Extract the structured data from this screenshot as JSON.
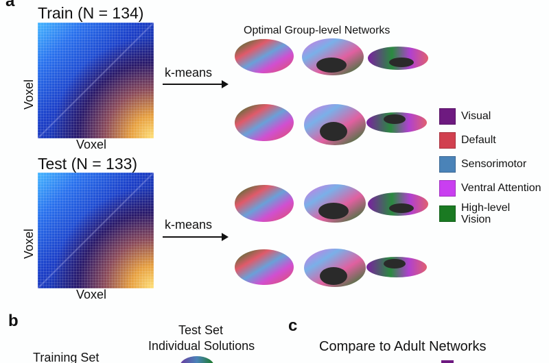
{
  "panel_a": {
    "letter": "a",
    "train_title": "Train (N = 134)",
    "test_title": "Test (N = 133)",
    "axis_label": "Voxel",
    "method_label": "k-means",
    "networks_title": "Optimal Group-level Networks"
  },
  "legend": [
    {
      "label": "Visual",
      "color": "#6e1a80"
    },
    {
      "label": "Default",
      "color": "#d1404f"
    },
    {
      "label": "Sensorimotor",
      "color": "#4a83b8"
    },
    {
      "label": "Ventral Attention",
      "color": "#c93ff0"
    },
    {
      "label": "High-level Vision",
      "label_line1": "High-level",
      "label_line2": "Vision",
      "color": "#1a7a22"
    }
  ],
  "panel_b": {
    "letter": "b",
    "test_line1": "Test Set",
    "test_line2": "Individual Solutions",
    "training": "Training Set"
  },
  "panel_c": {
    "letter": "c",
    "title": "Compare to Adult Networks"
  }
}
